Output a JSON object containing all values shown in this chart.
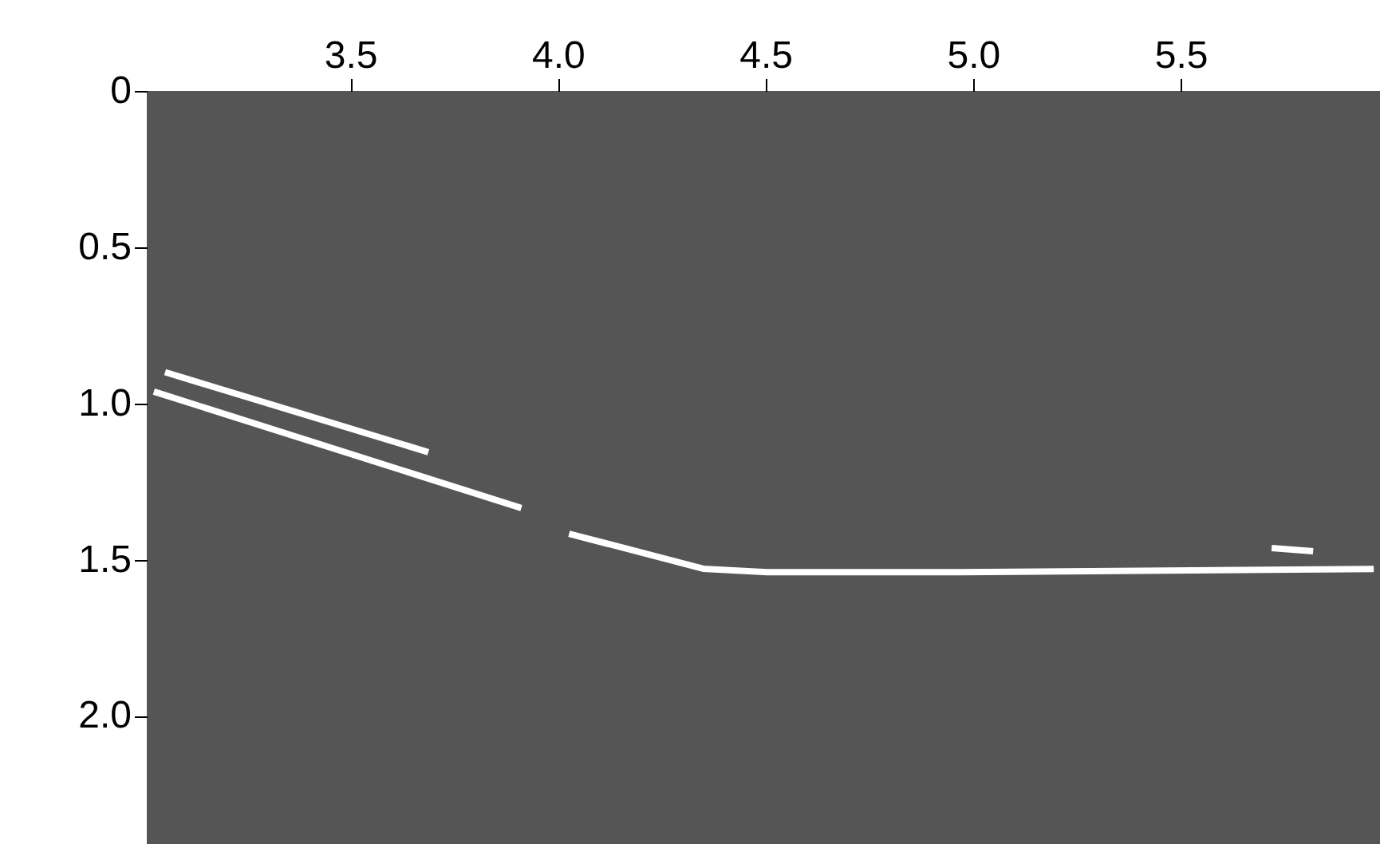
{
  "chart_data": {
    "type": "line",
    "xlim": [
      3.01,
      5.98
    ],
    "ylim": [
      2.41,
      0
    ],
    "xticks": [
      3.5,
      {
        "value": 4,
        "label": "4.0"
      },
      4.5,
      {
        "value": 5,
        "label": "5.0"
      },
      5.5
    ],
    "yticks": [
      {
        "value": 0,
        "label": "0"
      },
      0.5,
      {
        "value": 1,
        "label": "1.0"
      },
      1.5,
      {
        "value": 2,
        "label": "2.0"
      }
    ],
    "series": [
      {
        "color": "#ffffff",
        "x": [
          3.054,
          3.688
        ],
        "values": [
          0.9,
          1.156
        ]
      },
      {
        "color": "#ffffff",
        "x": [
          3.027,
          3.912
        ],
        "values": [
          0.962,
          1.335
        ]
      },
      {
        "color": "#ffffff",
        "x": [
          4.027,
          4.35,
          4.504,
          4.965,
          5.965
        ],
        "values": [
          1.417,
          1.529,
          1.54,
          1.54,
          1.53
        ]
      },
      {
        "color": "#ffffff",
        "x": [
          5.719,
          5.819
        ],
        "values": [
          1.463,
          1.473
        ]
      }
    ],
    "grid": false,
    "legend": false,
    "marker": "none",
    "line_style": "solid"
  }
}
